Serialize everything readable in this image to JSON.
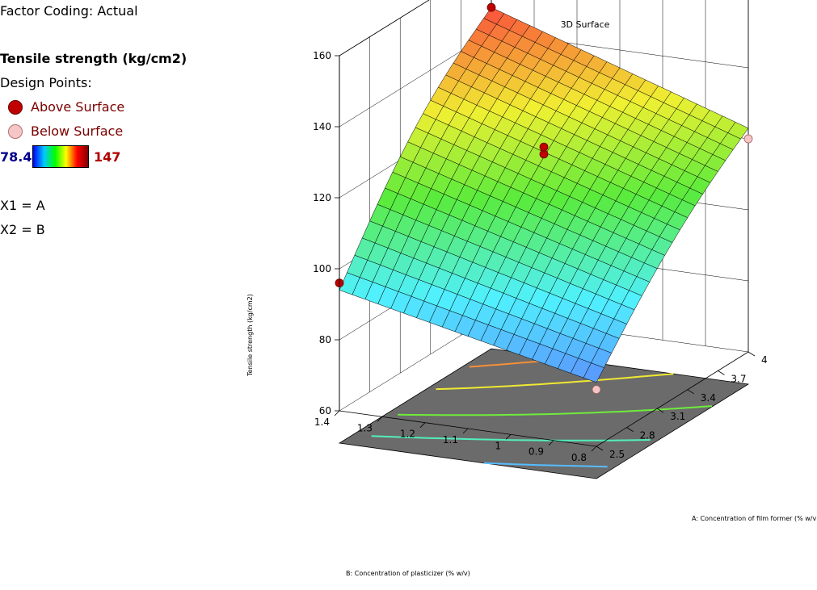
{
  "legend": {
    "factor_coding": "Factor Coding: Actual",
    "response": "Tensile strength (kg/cm2)",
    "design_points": "Design Points:",
    "above_surface": "Above Surface",
    "below_surface": "Below Surface",
    "color_min": "78.4",
    "color_max": "147",
    "x1": "X1 = A",
    "x2": "X2 = B"
  },
  "chart_data": {
    "type": "surface",
    "title": "3D Surface",
    "xlabel": "A: Concentration of film former (% w/v)",
    "ylabel": "B: Concentration of plasticizer (% w/v)",
    "zlabel": "Tensile strength (kg/cm2)",
    "a_ticks": [
      "2.5",
      "2.8",
      "3.1",
      "3.4",
      "3.7",
      "4"
    ],
    "b_ticks": [
      "0.8",
      "0.9",
      "1",
      "1.1",
      "1.2",
      "1.3",
      "1.4"
    ],
    "z_ticks": [
      "60",
      "80",
      "100",
      "120",
      "140",
      "160"
    ],
    "a_range": [
      2.5,
      4
    ],
    "b_range": [
      0.8,
      1.4
    ],
    "z_range": [
      60,
      160
    ],
    "color_range": [
      78.4,
      147
    ],
    "surface_corners": [
      {
        "a": 2.5,
        "b": 0.8,
        "z": 78
      },
      {
        "a": 4,
        "b": 0.8,
        "z": 123
      },
      {
        "a": 2.5,
        "b": 1.4,
        "z": 94
      },
      {
        "a": 4,
        "b": 1.4,
        "z": 147
      }
    ],
    "design_points": [
      {
        "a": 4,
        "b": 1.4,
        "z": 147,
        "position": "above"
      },
      {
        "a": 3.25,
        "b": 1.1,
        "z": 124,
        "position": "above"
      },
      {
        "a": 3.25,
        "b": 1.1,
        "z": 126,
        "position": "above"
      },
      {
        "a": 2.5,
        "b": 1.4,
        "z": 96,
        "position": "above"
      },
      {
        "a": 4,
        "b": 0.8,
        "z": 120,
        "position": "below"
      },
      {
        "a": 2.5,
        "b": 0.8,
        "z": 76,
        "position": "below"
      }
    ]
  }
}
